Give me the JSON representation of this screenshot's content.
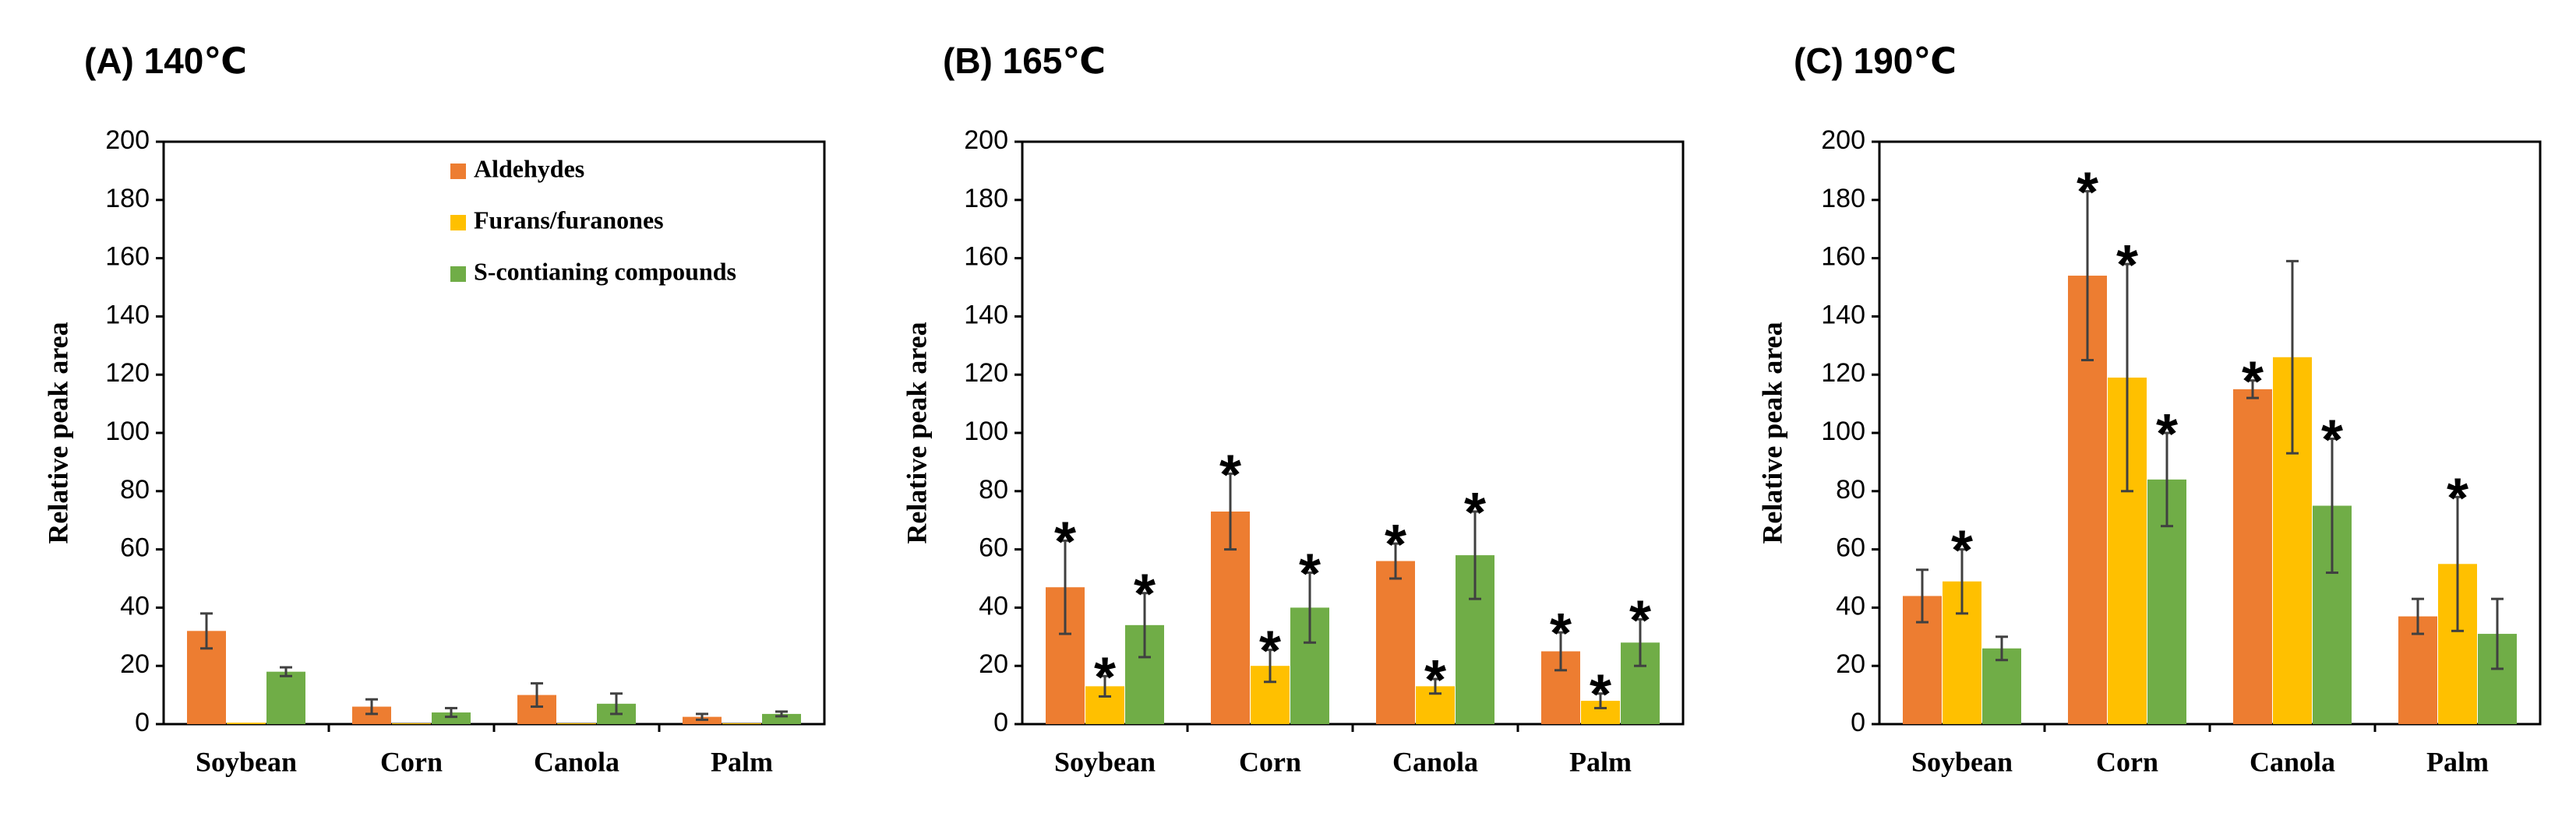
{
  "colors": {
    "Aldehydes": "#ED7D31",
    "Furans/furanones": "#FFC000",
    "S-contianing compounds": "#70AD47",
    "error_bar": "#404040",
    "axis": "#000000"
  },
  "chart_data": [
    {
      "type": "bar",
      "title": "(A) 140℃",
      "xlabel": "",
      "ylabel": "Relative peak area",
      "ylim": [
        0,
        200
      ],
      "yticks": [
        0,
        20,
        40,
        60,
        80,
        100,
        120,
        140,
        160,
        180,
        200
      ],
      "categories": [
        "Soybean",
        "Corn",
        "Canola",
        "Palm"
      ],
      "legend": {
        "position": "top-right",
        "entries": [
          "Aldehydes",
          "Furans/furanones",
          "S-contianing compounds"
        ]
      },
      "series": [
        {
          "name": "Aldehydes",
          "values": [
            32,
            6,
            10,
            2.5
          ],
          "errors": [
            6,
            2.5,
            4,
            1
          ],
          "significant": [
            false,
            false,
            false,
            false
          ]
        },
        {
          "name": "Furans/furanones",
          "values": [
            0.5,
            0.3,
            0.3,
            0.3
          ],
          "errors": [
            0,
            0,
            0,
            0
          ],
          "significant": [
            false,
            false,
            false,
            false
          ]
        },
        {
          "name": "S-contianing compounds",
          "values": [
            18,
            4,
            7,
            3.5
          ],
          "errors": [
            1.5,
            1.5,
            3.5,
            0.8
          ],
          "significant": [
            false,
            false,
            false,
            false
          ]
        }
      ]
    },
    {
      "type": "bar",
      "title": "(B) 165℃",
      "xlabel": "",
      "ylabel": "Relative peak area",
      "ylim": [
        0,
        200
      ],
      "yticks": [
        0,
        20,
        40,
        60,
        80,
        100,
        120,
        140,
        160,
        180,
        200
      ],
      "categories": [
        "Soybean",
        "Corn",
        "Canola",
        "Palm"
      ],
      "legend": null,
      "series": [
        {
          "name": "Aldehydes",
          "values": [
            47,
            73,
            56,
            25
          ],
          "errors": [
            16,
            13,
            6,
            6.5
          ],
          "significant": [
            true,
            true,
            true,
            true
          ]
        },
        {
          "name": "Furans/furanones",
          "values": [
            13,
            20,
            13,
            8
          ],
          "errors": [
            3.5,
            5.5,
            2.5,
            2.5
          ],
          "significant": [
            true,
            true,
            true,
            true
          ]
        },
        {
          "name": "S-contianing compounds",
          "values": [
            34,
            40,
            58,
            28
          ],
          "errors": [
            11,
            12,
            15,
            8
          ],
          "significant": [
            true,
            true,
            true,
            true
          ]
        }
      ]
    },
    {
      "type": "bar",
      "title": "(C) 190℃",
      "xlabel": "",
      "ylabel": "Relative peak area",
      "ylim": [
        0,
        200
      ],
      "yticks": [
        0,
        20,
        40,
        60,
        80,
        100,
        120,
        140,
        160,
        180,
        200
      ],
      "categories": [
        "Soybean",
        "Corn",
        "Canola",
        "Palm"
      ],
      "legend": null,
      "series": [
        {
          "name": "Aldehydes",
          "values": [
            44,
            154,
            115,
            37
          ],
          "errors": [
            9,
            29,
            3,
            6
          ],
          "significant": [
            false,
            true,
            true,
            false
          ]
        },
        {
          "name": "Furans/furanones",
          "values": [
            49,
            119,
            126,
            55
          ],
          "errors": [
            11,
            39,
            33,
            23
          ],
          "significant": [
            true,
            true,
            false,
            true
          ]
        },
        {
          "name": "S-contianing compounds",
          "values": [
            26,
            84,
            75,
            31
          ],
          "errors": [
            4,
            16,
            23,
            12
          ],
          "significant": [
            false,
            true,
            true,
            false
          ]
        }
      ]
    }
  ]
}
